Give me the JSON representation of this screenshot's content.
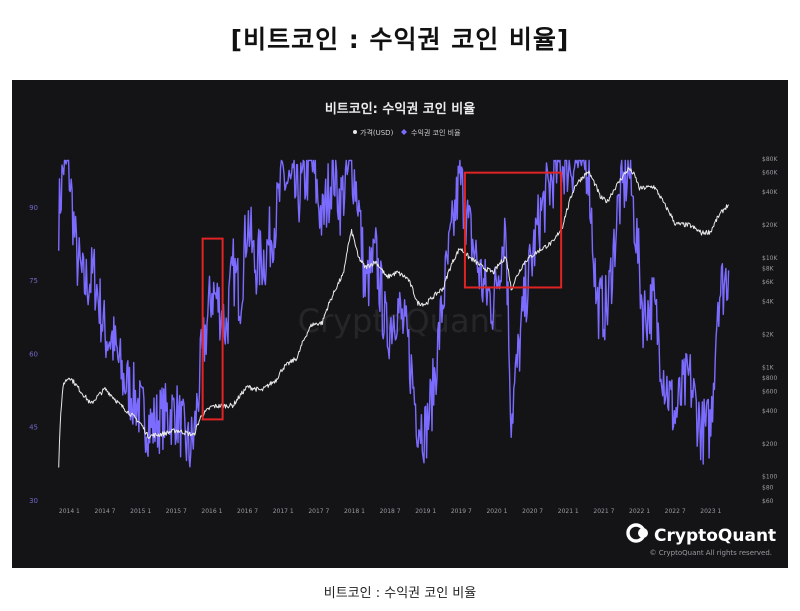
{
  "page": {
    "heading": "[비트코인 : 수익권 코인 비율]",
    "caption": "비트코인 : 수익권 코인 비율"
  },
  "brand": {
    "name": "CryptoQuant",
    "copyright": "© CryptoQuant All rights reserved.",
    "watermark": "CryptoQuant"
  },
  "colors": {
    "panel_bg": "#141417",
    "ratio_line": "#7b6cff",
    "price_line": "#e8e8e8",
    "highlight_box": "#e02424",
    "axis_text_left": "#6f67c8",
    "axis_text_right": "#9a9aa0"
  },
  "chart_data": {
    "type": "line",
    "title": "비트코인: 수익권 코인 비율",
    "legend_position": "top-center",
    "grid": false,
    "x_tick_labels": [
      "2014 1",
      "2014 7",
      "2015 1",
      "2015 7",
      "2016 1",
      "2016 7",
      "2017 1",
      "2017 7",
      "2018 1",
      "2018 7",
      "2019 1",
      "2019 7",
      "2020 1",
      "2020 7",
      "2021 1",
      "2021 7",
      "2022 1",
      "2022 7",
      "2023 1"
    ],
    "y_left": {
      "ticks": [
        30,
        45,
        60,
        75,
        90
      ],
      "range": [
        30,
        100
      ]
    },
    "y_right": {
      "scale": "log",
      "range": [
        60,
        80000
      ],
      "ticks": [
        60,
        80,
        100,
        200,
        400,
        600,
        800,
        1000,
        2000,
        4000,
        6000,
        8000,
        10000,
        20000,
        40000,
        60000,
        80000
      ],
      "tick_labels": [
        "$60",
        "$80",
        "$100",
        "$200",
        "$400",
        "$600",
        "$800",
        "$1K",
        "$2K",
        "$4K",
        "$6K",
        "$8K",
        "$10K",
        "$20K",
        "$40K",
        "$60K",
        "$80K"
      ]
    },
    "series": [
      {
        "name": "가격(USD)",
        "axis": "right",
        "color": "#e8e8e8",
        "points": [
          [
            2013.85,
            120
          ],
          [
            2013.92,
            700
          ],
          [
            2014.0,
            800
          ],
          [
            2014.15,
            600
          ],
          [
            2014.3,
            450
          ],
          [
            2014.5,
            620
          ],
          [
            2014.7,
            450
          ],
          [
            2014.85,
            370
          ],
          [
            2015.0,
            300
          ],
          [
            2015.1,
            230
          ],
          [
            2015.3,
            240
          ],
          [
            2015.5,
            260
          ],
          [
            2015.75,
            235
          ],
          [
            2015.85,
            350
          ],
          [
            2016.0,
            430
          ],
          [
            2016.3,
            440
          ],
          [
            2016.5,
            650
          ],
          [
            2016.7,
            600
          ],
          [
            2016.9,
            750
          ],
          [
            2017.0,
            970
          ],
          [
            2017.2,
            1200
          ],
          [
            2017.4,
            2400
          ],
          [
            2017.55,
            2500
          ],
          [
            2017.7,
            4500
          ],
          [
            2017.85,
            7000
          ],
          [
            2017.96,
            17000
          ],
          [
            2018.05,
            10000
          ],
          [
            2018.15,
            8000
          ],
          [
            2018.3,
            9000
          ],
          [
            2018.45,
            6500
          ],
          [
            2018.6,
            7200
          ],
          [
            2018.75,
            6300
          ],
          [
            2018.88,
            3800
          ],
          [
            2019.0,
            3700
          ],
          [
            2019.25,
            5200
          ],
          [
            2019.48,
            12000
          ],
          [
            2019.6,
            10000
          ],
          [
            2019.8,
            8000
          ],
          [
            2019.95,
            7200
          ],
          [
            2020.12,
            10000
          ],
          [
            2020.2,
            5000
          ],
          [
            2020.4,
            9200
          ],
          [
            2020.6,
            11500
          ],
          [
            2020.8,
            13800
          ],
          [
            2020.92,
            19000
          ],
          [
            2021.0,
            29000
          ],
          [
            2021.1,
            45000
          ],
          [
            2021.28,
            60000
          ],
          [
            2021.45,
            35000
          ],
          [
            2021.55,
            32000
          ],
          [
            2021.7,
            47000
          ],
          [
            2021.85,
            64000
          ],
          [
            2021.92,
            57000
          ],
          [
            2022.0,
            42000
          ],
          [
            2022.2,
            44000
          ],
          [
            2022.35,
            30000
          ],
          [
            2022.5,
            20000
          ],
          [
            2022.7,
            19500
          ],
          [
            2022.87,
            16500
          ],
          [
            2023.0,
            17000
          ],
          [
            2023.1,
            23000
          ],
          [
            2023.2,
            28000
          ],
          [
            2023.25,
            30000
          ]
        ]
      },
      {
        "name": "수익권 코인 비율",
        "axis": "left",
        "color": "#7b6cff",
        "points": [
          [
            2013.85,
            88
          ],
          [
            2013.92,
            99
          ],
          [
            2014.0,
            97
          ],
          [
            2014.1,
            80
          ],
          [
            2014.2,
            74
          ],
          [
            2014.35,
            76
          ],
          [
            2014.5,
            64
          ],
          [
            2014.6,
            63
          ],
          [
            2014.75,
            55
          ],
          [
            2014.95,
            50
          ],
          [
            2015.0,
            48
          ],
          [
            2015.15,
            45
          ],
          [
            2015.3,
            47
          ],
          [
            2015.5,
            48
          ],
          [
            2015.68,
            40
          ],
          [
            2015.75,
            43
          ],
          [
            2015.85,
            58
          ],
          [
            2016.0,
            73
          ],
          [
            2016.1,
            70
          ],
          [
            2016.2,
            65
          ],
          [
            2016.3,
            77
          ],
          [
            2016.4,
            72
          ],
          [
            2016.5,
            88
          ],
          [
            2016.6,
            78
          ],
          [
            2016.75,
            80
          ],
          [
            2016.9,
            88
          ],
          [
            2017.0,
            96
          ],
          [
            2017.2,
            92
          ],
          [
            2017.4,
            99
          ],
          [
            2017.55,
            87
          ],
          [
            2017.7,
            98
          ],
          [
            2017.8,
            91
          ],
          [
            2017.96,
            99
          ],
          [
            2018.05,
            92
          ],
          [
            2018.15,
            73
          ],
          [
            2018.3,
            80
          ],
          [
            2018.45,
            64
          ],
          [
            2018.6,
            70
          ],
          [
            2018.75,
            62
          ],
          [
            2018.88,
            47
          ],
          [
            2019.0,
            44
          ],
          [
            2019.1,
            52
          ],
          [
            2019.25,
            72
          ],
          [
            2019.48,
            96
          ],
          [
            2019.6,
            86
          ],
          [
            2019.8,
            74
          ],
          [
            2019.95,
            70
          ],
          [
            2020.12,
            87
          ],
          [
            2020.2,
            47
          ],
          [
            2020.4,
            72
          ],
          [
            2020.6,
            88
          ],
          [
            2020.8,
            97
          ],
          [
            2020.92,
            99
          ],
          [
            2021.0,
            99
          ],
          [
            2021.1,
            99
          ],
          [
            2021.28,
            99
          ],
          [
            2021.4,
            70
          ],
          [
            2021.55,
            69
          ],
          [
            2021.7,
            90
          ],
          [
            2021.85,
            98
          ],
          [
            2021.95,
            85
          ],
          [
            2022.05,
            68
          ],
          [
            2022.2,
            70
          ],
          [
            2022.35,
            55
          ],
          [
            2022.5,
            47
          ],
          [
            2022.6,
            52
          ],
          [
            2022.7,
            55
          ],
          [
            2022.87,
            44
          ],
          [
            2023.0,
            45
          ],
          [
            2023.1,
            72
          ],
          [
            2023.2,
            75
          ],
          [
            2023.25,
            77
          ]
        ]
      }
    ],
    "annotations": [
      {
        "type": "box",
        "x_range": [
          2015.87,
          2016.15
        ],
        "y_left_range": [
          46.5,
          83.5
        ]
      },
      {
        "type": "box",
        "x_range": [
          2019.55,
          2020.9
        ],
        "y_left_range": [
          73.5,
          97
        ]
      }
    ]
  }
}
